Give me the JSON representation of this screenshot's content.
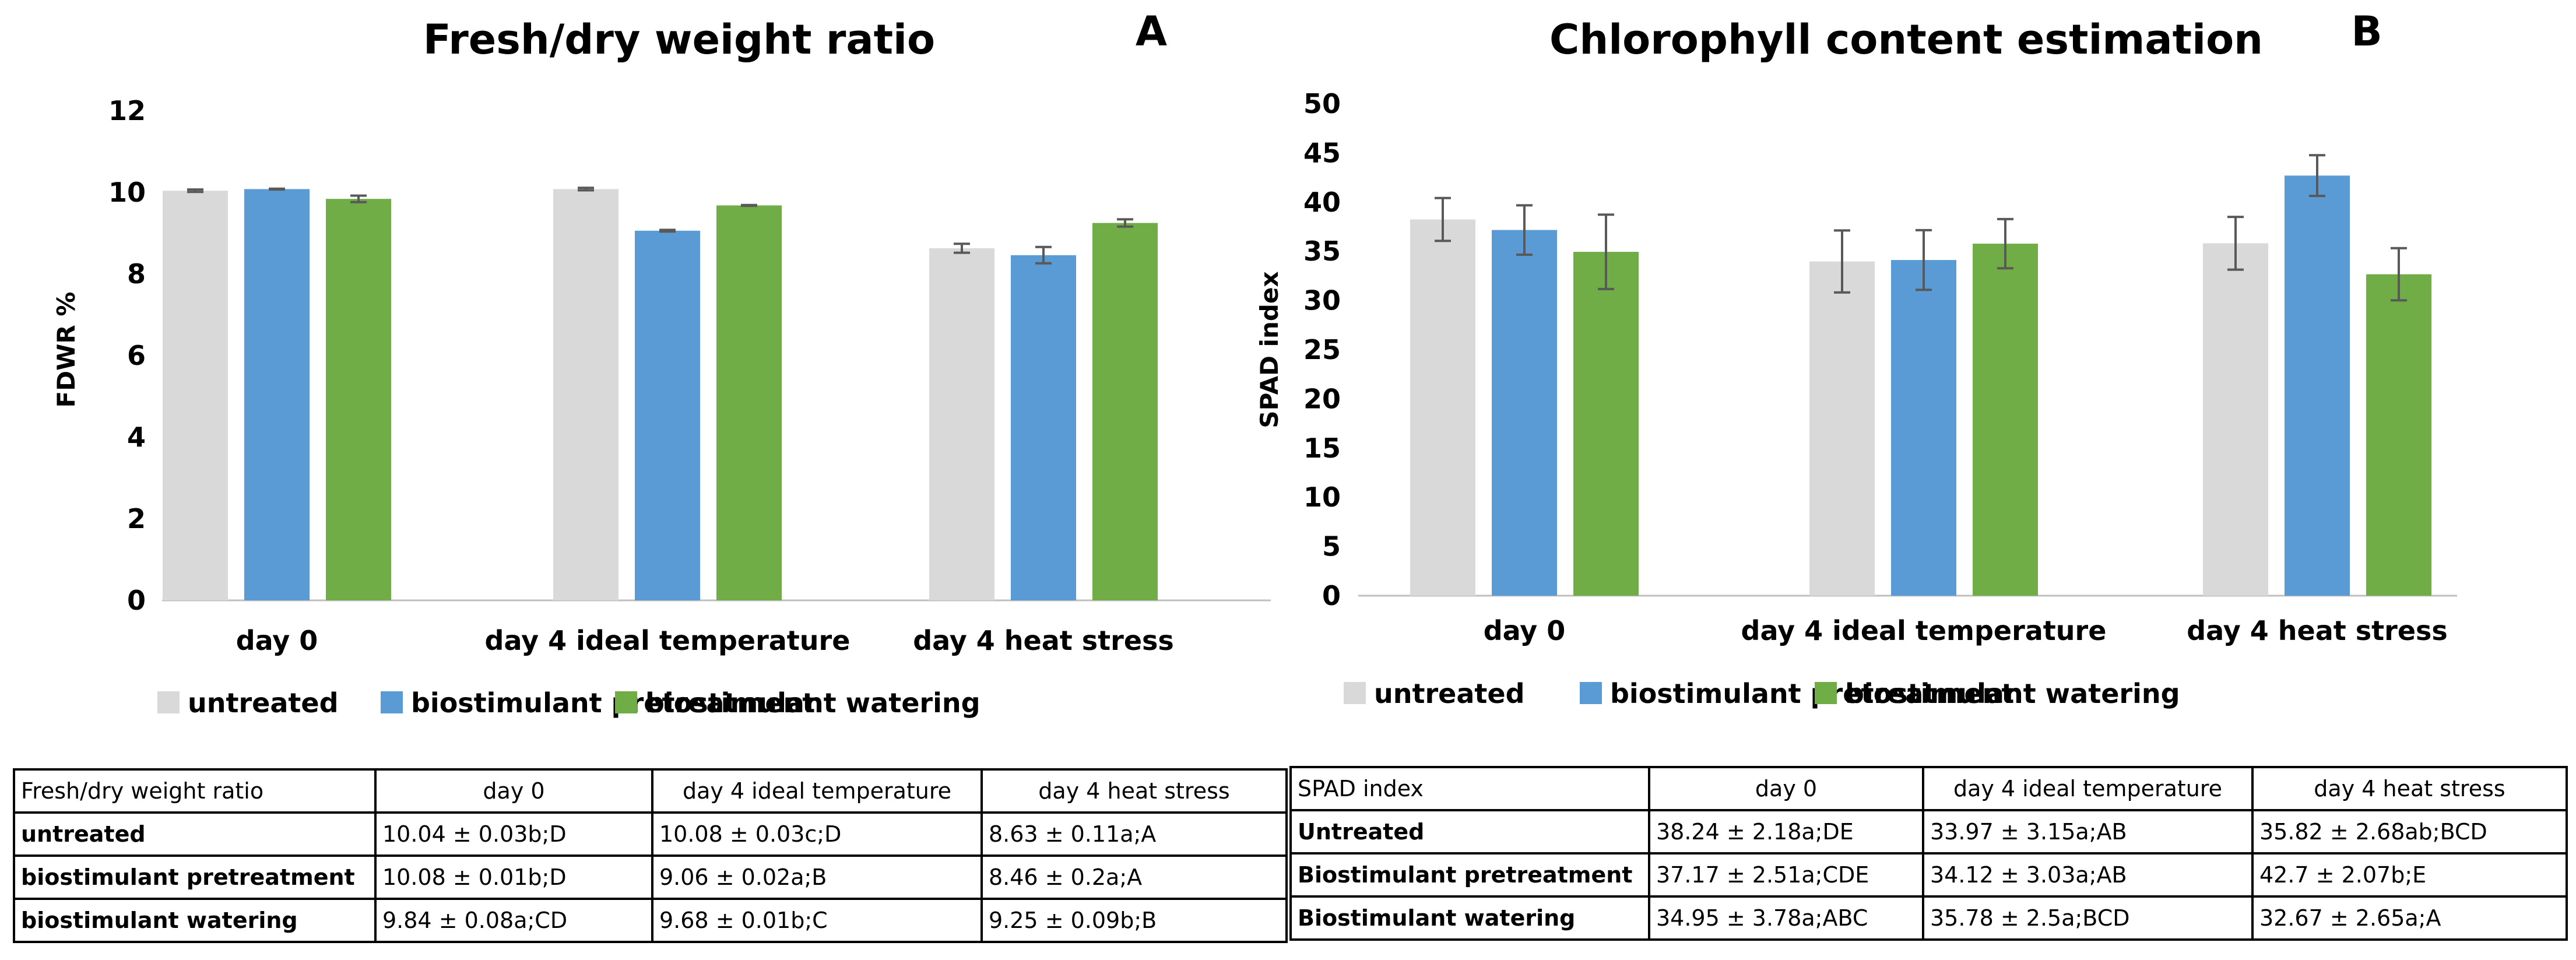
{
  "chart_data": [
    {
      "type": "bar",
      "title": "Fresh/dry weight ratio",
      "panel": "A",
      "xlabel": "",
      "ylabel": "FDWR %",
      "ylim": [
        0,
        12
      ],
      "yticks": [
        0,
        2,
        4,
        6,
        8,
        10,
        12
      ],
      "grid": false,
      "legend": "bottom",
      "categories": [
        "day 0",
        "day 4 ideal temperature",
        "day 4 heat stress"
      ],
      "series": [
        {
          "name": "untreated",
          "color": "#D9D9D9",
          "values": [
            10.04,
            10.08,
            8.63
          ],
          "errors": [
            0.03,
            0.03,
            0.11
          ]
        },
        {
          "name": "biostimulant pretreatment",
          "color": "#5B9BD5",
          "values": [
            10.08,
            9.06,
            8.46
          ],
          "errors": [
            0.01,
            0.02,
            0.2
          ]
        },
        {
          "name": "biostimulant watering",
          "color": "#70AD47",
          "values": [
            9.84,
            9.68,
            9.25
          ],
          "errors": [
            0.08,
            0.01,
            0.09
          ]
        }
      ]
    },
    {
      "type": "bar",
      "title": "Chlorophyll content estimation",
      "panel": "B",
      "xlabel": "",
      "ylabel": "SPAD index",
      "ylim": [
        0,
        50
      ],
      "yticks": [
        0,
        5,
        10,
        15,
        20,
        25,
        30,
        35,
        40,
        45,
        50
      ],
      "grid": false,
      "legend": "bottom",
      "categories": [
        "day 0",
        "day 4 ideal temperature",
        "day 4 heat stress"
      ],
      "series": [
        {
          "name": "untreated",
          "color": "#D9D9D9",
          "values": [
            38.24,
            33.97,
            35.82
          ],
          "errors": [
            2.18,
            3.15,
            2.68
          ]
        },
        {
          "name": "biostimulant pretreatment",
          "color": "#5B9BD5",
          "values": [
            37.17,
            34.12,
            42.7
          ],
          "errors": [
            2.51,
            3.03,
            2.07
          ]
        },
        {
          "name": "biostimulant watering",
          "color": "#70AD47",
          "values": [
            34.95,
            35.78,
            32.67
          ],
          "errors": [
            3.78,
            2.5,
            2.65
          ]
        }
      ]
    }
  ],
  "tables": {
    "a": {
      "header": [
        "Fresh/dry weight ratio",
        "day 0",
        "day 4 ideal temperature",
        "day 4 heat stress"
      ],
      "rows": [
        [
          "untreated",
          "10.04 ± 0.03b;D",
          "10.08 ± 0.03c;D",
          "8.63 ± 0.11a;A"
        ],
        [
          "biostimulant pretreatment",
          "10.08 ± 0.01b;D",
          "9.06 ± 0.02a;B",
          "8.46 ± 0.2a;A"
        ],
        [
          "biostimulant watering",
          "9.84 ± 0.08a;CD",
          "9.68 ± 0.01b;C",
          "9.25 ± 0.09b;B"
        ]
      ]
    },
    "b": {
      "header": [
        "SPAD index",
        "day 0",
        "day 4 ideal temperature",
        "day 4 heat stress"
      ],
      "rows": [
        [
          "Untreated",
          "38.24 ± 2.18a;DE",
          "33.97 ± 3.15a;AB",
          "35.82 ± 2.68ab;BCD"
        ],
        [
          "Biostimulant pretreatment",
          "37.17 ± 2.51a;CDE",
          "34.12 ± 3.03a;AB",
          "42.7 ± 2.07b;E"
        ],
        [
          "Biostimulant watering",
          "34.95 ± 3.78a;ABC",
          "35.78 ± 2.5a;BCD",
          "32.67 ± 2.65a;A"
        ]
      ]
    }
  }
}
